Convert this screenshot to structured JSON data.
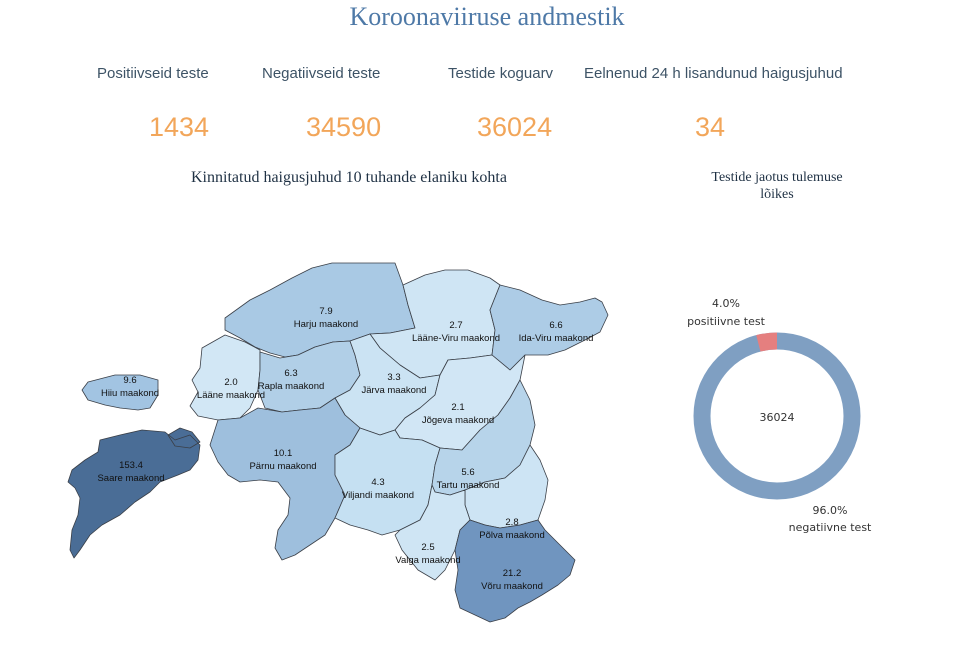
{
  "page": {
    "title": "Koroonaviiruse andmestik"
  },
  "kpis": [
    {
      "label": "Positiivseid teste",
      "value": "1434"
    },
    {
      "label": "Negatiivseid teste",
      "value": "34590"
    },
    {
      "label": "Testide koguarv",
      "value": "36024"
    },
    {
      "label": "Eelnenud 24 h lisandunud haigusjuhud",
      "value": "34"
    }
  ],
  "map": {
    "title": "Kinnitatud haigusjuhud 10 tuhande elaniku kohta",
    "counties": [
      {
        "name": "Harju maakond",
        "value": "7.9",
        "color": "#a9c9e4"
      },
      {
        "name": "Lääne-Viru maakond",
        "value": "2.7",
        "color": "#cfe5f4"
      },
      {
        "name": "Ida-Viru maakond",
        "value": "6.6",
        "color": "#adcce6"
      },
      {
        "name": "Hiiu maakond",
        "value": "9.6",
        "color": "#a2c4e2"
      },
      {
        "name": "Lääne maakond",
        "value": "2.0",
        "color": "#d2e7f5"
      },
      {
        "name": "Rapla maakond",
        "value": "6.3",
        "color": "#b1cfe7"
      },
      {
        "name": "Järva maakond",
        "value": "3.3",
        "color": "#cbe3f3"
      },
      {
        "name": "Jõgeva maakond",
        "value": "2.1",
        "color": "#d1e6f5"
      },
      {
        "name": "Saare maakond",
        "value": "153.4",
        "color": "#4a6d96"
      },
      {
        "name": "Pärnu maakond",
        "value": "10.1",
        "color": "#9ebfdd"
      },
      {
        "name": "Viljandi maakond",
        "value": "4.3",
        "color": "#c5e0f2"
      },
      {
        "name": "Tartu maakond",
        "value": "5.6",
        "color": "#b7d4ea"
      },
      {
        "name": "Põlva maakond",
        "value": "2.8",
        "color": "#cde4f4"
      },
      {
        "name": "Valga maakond",
        "value": "2.5",
        "color": "#cfe5f4"
      },
      {
        "name": "Võru maakond",
        "value": "21.2",
        "color": "#7095bf"
      }
    ]
  },
  "donut": {
    "title_line1": "Testide jaotus tulemuse",
    "title_line2": "lõikes",
    "center": "36024",
    "positive": {
      "pct": "4.0%",
      "label": "positiivne test",
      "fraction": 0.04,
      "color": "#e57f7f"
    },
    "negative": {
      "pct": "96.0%",
      "label": "negatiivne test",
      "fraction": 0.96,
      "color": "#7f9fc2"
    }
  }
}
